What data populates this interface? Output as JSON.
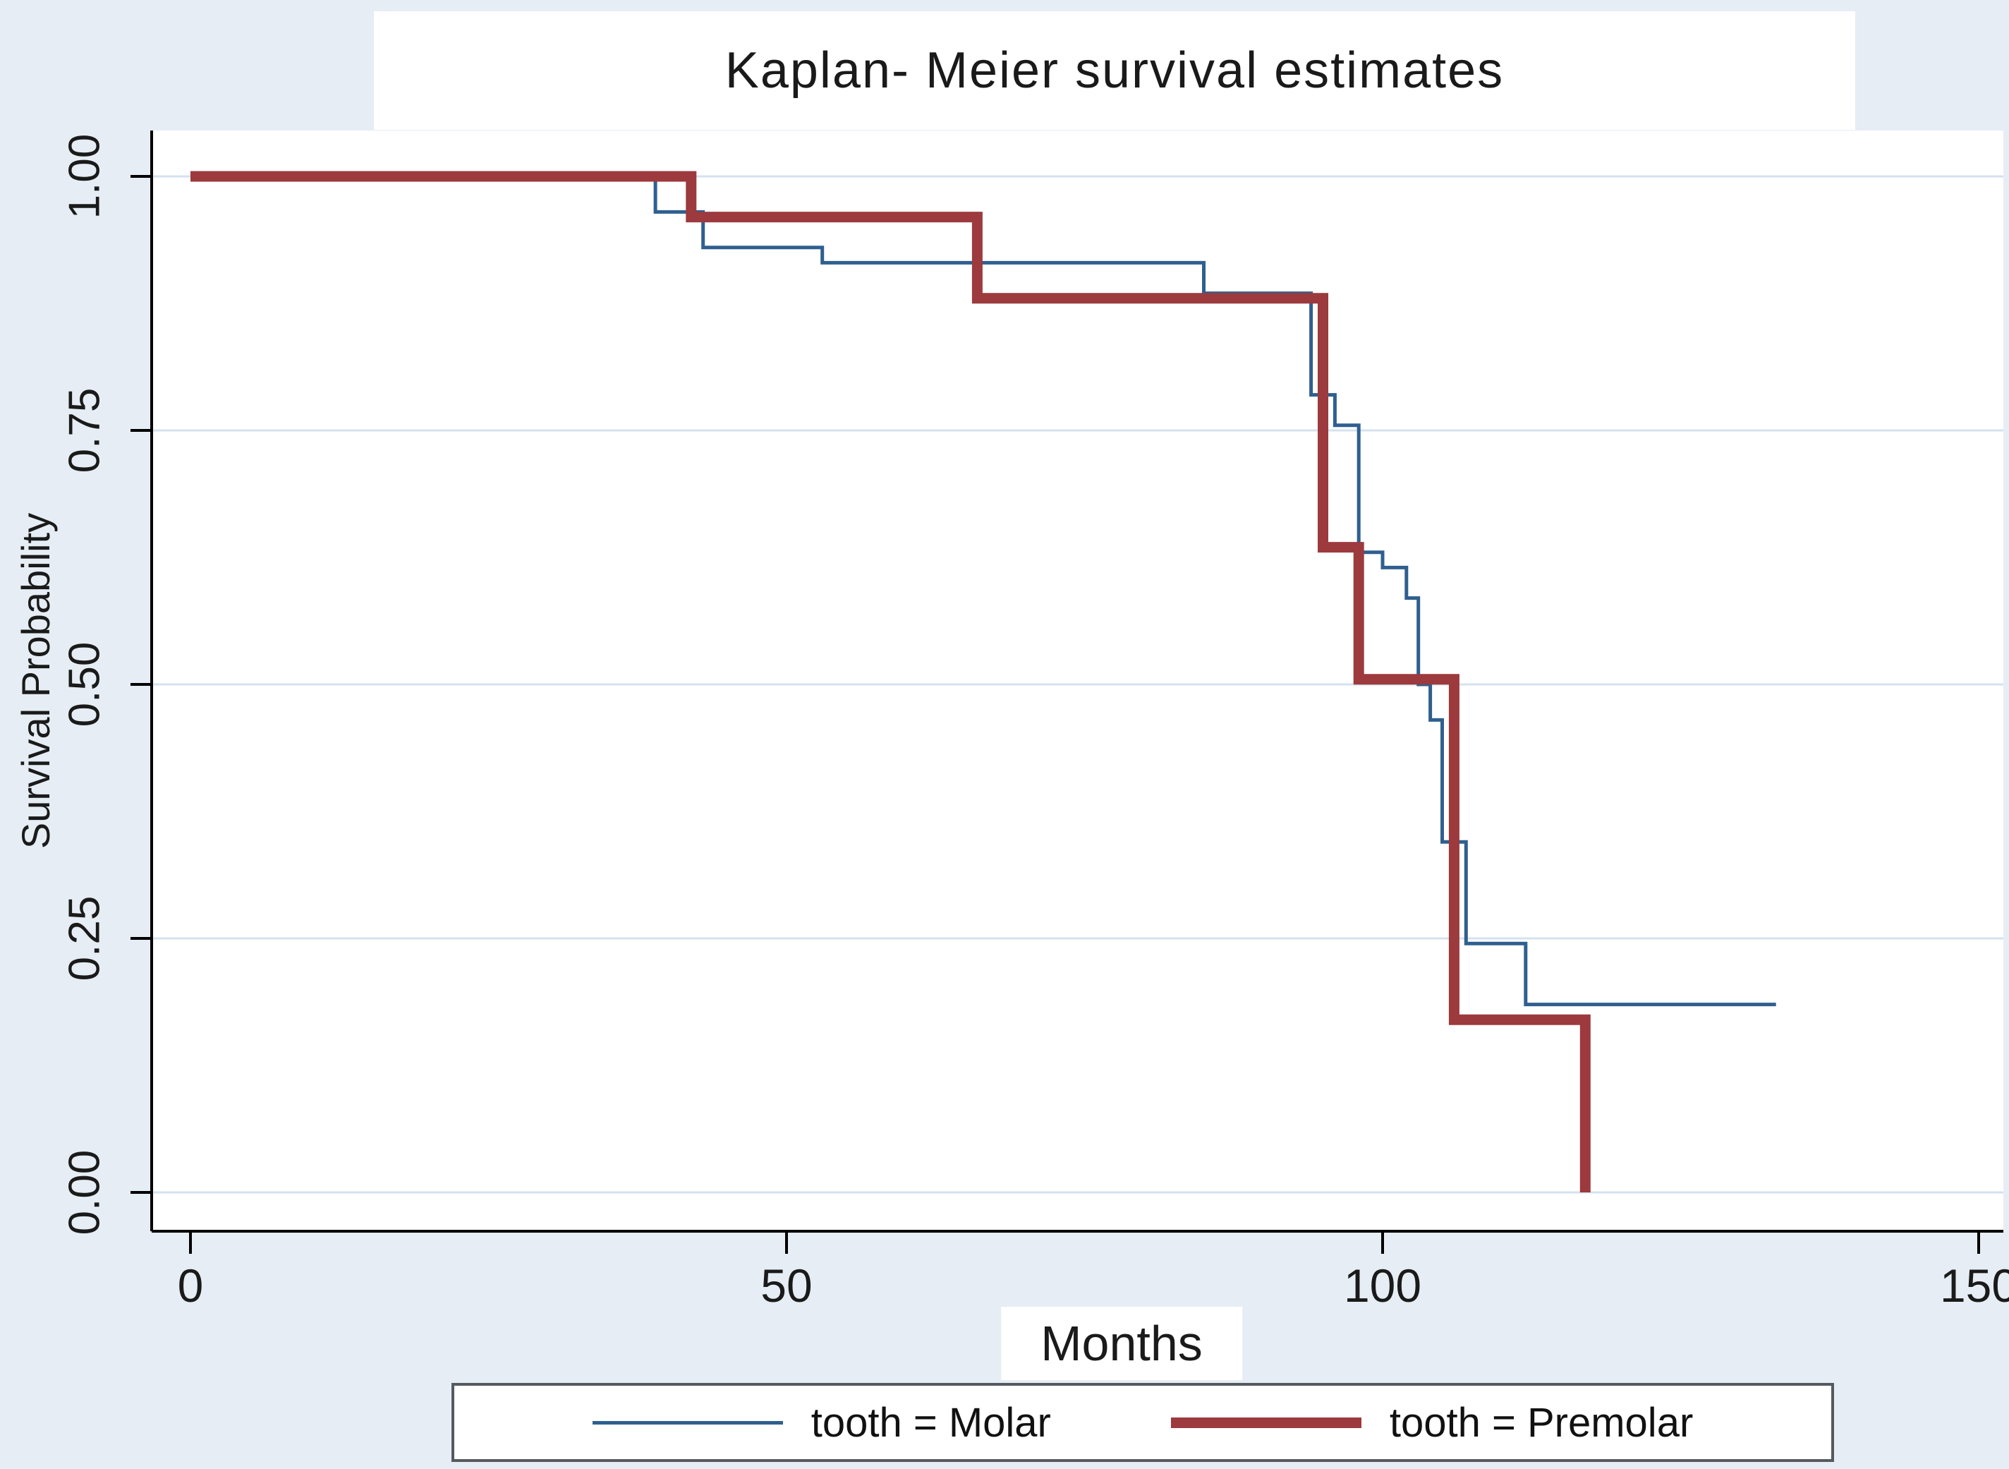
{
  "colors": {
    "background": "#e6edf4",
    "plot_background": "#ffffff",
    "gridline": "#d4e2ee",
    "axis": "#000000",
    "molar_line": "#2f5f8f",
    "premolar_line": "#9c3a3e",
    "legend_border": "#555a5f"
  },
  "chart_data": {
    "type": "line",
    "subtype": "kaplan-meier-step",
    "title": "Kaplan- Meier survival estimates",
    "xlabel": "Months",
    "ylabel": "Survival Probability",
    "xlim": [
      0,
      150
    ],
    "ylim": [
      0,
      1
    ],
    "grid": "horizontal",
    "legend_position": "bottom",
    "x_ticks": {
      "values": [
        0,
        50,
        100,
        150
      ],
      "labels": [
        "0",
        "50",
        "100",
        "150"
      ]
    },
    "y_ticks": {
      "values": [
        0,
        0.25,
        0.5,
        0.75,
        1
      ],
      "labels": [
        "0.00",
        "0.25",
        "0.50",
        "0.75",
        "1.00"
      ]
    },
    "series": [
      {
        "name": "tooth = Molar",
        "color": "#2f5f8f",
        "stroke_width": 5,
        "points": [
          [
            0,
            1.0
          ],
          [
            39,
            1.0
          ],
          [
            39,
            0.965
          ],
          [
            43,
            0.965
          ],
          [
            43,
            0.93
          ],
          [
            53,
            0.93
          ],
          [
            53,
            0.915
          ],
          [
            85,
            0.915
          ],
          [
            85,
            0.885
          ],
          [
            94,
            0.885
          ],
          [
            94,
            0.785
          ],
          [
            96,
            0.785
          ],
          [
            96,
            0.755
          ],
          [
            98,
            0.755
          ],
          [
            98,
            0.63
          ],
          [
            100,
            0.63
          ],
          [
            100,
            0.615
          ],
          [
            102,
            0.615
          ],
          [
            102,
            0.585
          ],
          [
            103,
            0.585
          ],
          [
            103,
            0.5
          ],
          [
            104,
            0.5
          ],
          [
            104,
            0.465
          ],
          [
            105,
            0.465
          ],
          [
            105,
            0.345
          ],
          [
            107,
            0.345
          ],
          [
            107,
            0.245
          ],
          [
            112,
            0.245
          ],
          [
            112,
            0.185
          ],
          [
            133,
            0.185
          ]
        ]
      },
      {
        "name": "tooth = Premolar",
        "color": "#9c3a3e",
        "stroke_width": 15,
        "points": [
          [
            0,
            1.0
          ],
          [
            42,
            1.0
          ],
          [
            42,
            0.96
          ],
          [
            66,
            0.96
          ],
          [
            66,
            0.88
          ],
          [
            95,
            0.88
          ],
          [
            95,
            0.635
          ],
          [
            98,
            0.635
          ],
          [
            98,
            0.505
          ],
          [
            106,
            0.505
          ],
          [
            106,
            0.17
          ],
          [
            117,
            0.17
          ],
          [
            117,
            0.0
          ]
        ]
      }
    ]
  }
}
